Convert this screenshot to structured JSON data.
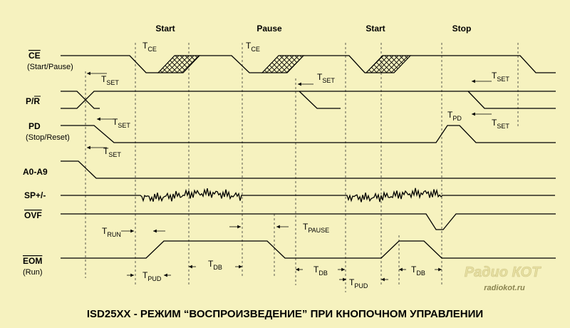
{
  "phases": [
    "Start",
    "Pause",
    "Start",
    "Stop"
  ],
  "signals": [
    {
      "name": "CE",
      "note": "(Start/Pause)"
    },
    {
      "name": "P/R"
    },
    {
      "name": "PD",
      "note": "(Stop/Reset)"
    },
    {
      "name": "A0-A9"
    },
    {
      "name": "SP+/-"
    },
    {
      "name": "OVF"
    },
    {
      "name": "EOM",
      "note": "(Run)"
    }
  ],
  "timings": [
    {
      "t": "T",
      "sub": "CE"
    },
    {
      "t": "T",
      "sub": "CE"
    },
    {
      "t": "T",
      "sub": "SET"
    },
    {
      "t": "T",
      "sub": "SET"
    },
    {
      "t": "T",
      "sub": "SET"
    },
    {
      "t": "T",
      "sub": "SET"
    },
    {
      "t": "T",
      "sub": "PD"
    },
    {
      "t": "T",
      "sub": "SET"
    },
    {
      "t": "T",
      "sub": "SET"
    },
    {
      "t": "T",
      "sub": "RUN"
    },
    {
      "t": "T",
      "sub": "PAUSE"
    },
    {
      "t": "T",
      "sub": "DB"
    },
    {
      "t": "T",
      "sub": "DB"
    },
    {
      "t": "T",
      "sub": "DB"
    },
    {
      "t": "T",
      "sub": "PUD"
    },
    {
      "t": "T",
      "sub": "PUD"
    }
  ],
  "watermark": {
    "logo": "Радио КОТ",
    "url": "radiokot.ru"
  },
  "caption": "ISD25XX - РЕЖИМ “ВОСПРОИЗВЕДЕНИЕ” ПРИ КНОПОЧНОМ УПРАВЛЕНИИ"
}
